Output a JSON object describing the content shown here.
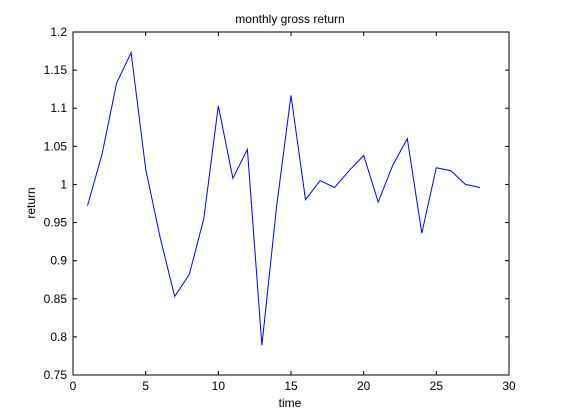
{
  "chart_data": {
    "type": "line",
    "title": "monthly gross return",
    "xlabel": "time",
    "ylabel": "return",
    "xlim": [
      0,
      30
    ],
    "ylim": [
      0.75,
      1.2
    ],
    "xticks": [
      "0",
      "5",
      "10",
      "15",
      "20",
      "25",
      "30"
    ],
    "yticks": [
      "0.75",
      "0.8",
      "0.85",
      "0.9",
      "0.95",
      "1",
      "1.05",
      "1.1",
      "1.15",
      "1.2"
    ],
    "grid": false,
    "line_color": "#0000ff",
    "x": [
      1,
      2,
      3,
      4,
      5,
      6,
      7,
      8,
      9,
      10,
      11,
      12,
      13,
      14,
      15,
      16,
      17,
      18,
      19,
      20,
      21,
      22,
      23,
      24,
      25,
      26,
      27,
      28
    ],
    "y": [
      0.972,
      1.04,
      1.133,
      1.173,
      1.02,
      0.93,
      0.853,
      0.882,
      0.955,
      1.103,
      1.008,
      1.046,
      0.789,
      0.97,
      1.117,
      0.98,
      1.005,
      0.996,
      1.018,
      1.038,
      0.977,
      1.025,
      1.06,
      0.936,
      1.022,
      1.018,
      1.0,
      0.996
    ]
  }
}
